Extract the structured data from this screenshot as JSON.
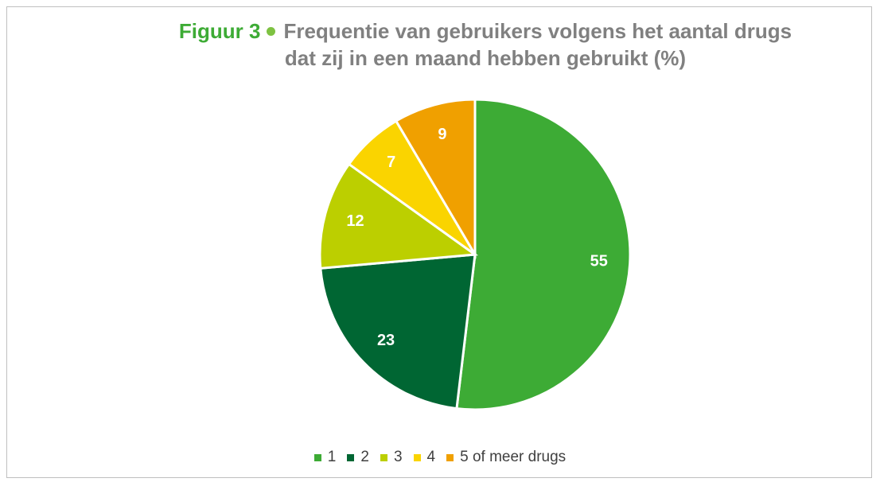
{
  "chart_data": {
    "type": "pie",
    "label": "Figuur 3",
    "title": "Frequentie van gebruikers volgens het aantal drugs dat zij in een maand hebben gebruikt (%)",
    "categories": [
      "1",
      "2",
      "3",
      "4",
      "5 of meer drugs"
    ],
    "values": [
      55,
      23,
      12,
      7,
      9
    ],
    "colors": [
      "#3dab35",
      "#006633",
      "#bccf00",
      "#fad400",
      "#f0a000"
    ],
    "legend": "bottom"
  }
}
